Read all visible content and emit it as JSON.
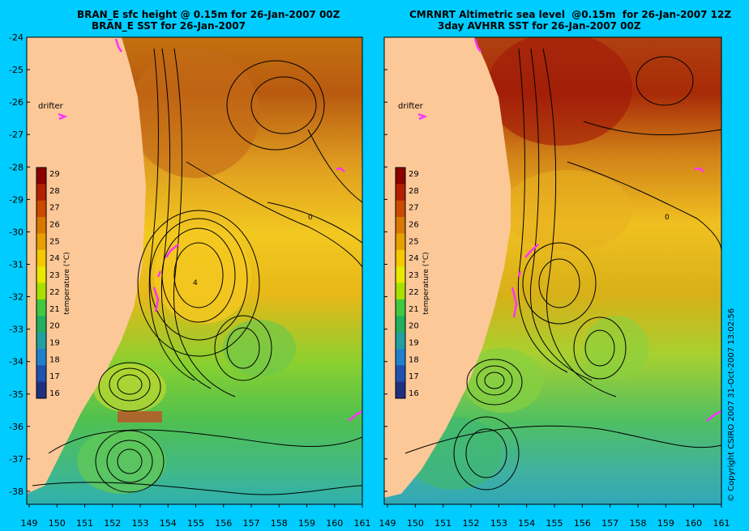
{
  "panels": [
    {
      "title_line1": "BRAN_E sfc height @ 0.15m for 26-Jan-2007 00Z",
      "title_line2": "BRAN_E SST for 26-Jan-2007",
      "drifter_label": "drifter",
      "contour_labels": [
        "0",
        "4"
      ]
    },
    {
      "title_line1": "CMRNRT Altimetric sea level  @0.15m  for 26-Jan-2007 12Z",
      "title_line2": "3day AVHRR SST for 26-Jan-2007 00Z",
      "drifter_label": "drifter",
      "contour_labels": [
        "0"
      ]
    }
  ],
  "axes": {
    "lat_ticks": [
      "-24",
      "-25",
      "-26",
      "-27",
      "-28",
      "-29",
      "-30",
      "-31",
      "-32",
      "-33",
      "-34",
      "-35",
      "-36",
      "-37",
      "-38"
    ],
    "lon_ticks": [
      "149",
      "150",
      "151",
      "152",
      "153",
      "154",
      "155",
      "156",
      "157",
      "158",
      "159",
      "160",
      "161"
    ],
    "lat_range": [
      -38.4,
      -24
    ],
    "lon_range": [
      149,
      161
    ]
  },
  "colorbar": {
    "label": "temperature (°C)",
    "ticks": [
      "29",
      "28",
      "27",
      "26",
      "25",
      "24",
      "23",
      "22",
      "21",
      "20",
      "19",
      "18",
      "17",
      "16"
    ],
    "colors": [
      "#8b0000",
      "#b22000",
      "#cc4a00",
      "#d97800",
      "#e8a000",
      "#f5c800",
      "#e8e800",
      "#a8e000",
      "#40c840",
      "#20b060",
      "#20a0a0",
      "#2080d0",
      "#2050b0",
      "#203080"
    ]
  },
  "copyright": "© Copyright CSIRO 2007   31-Oct-2007 13:02:56",
  "colors": {
    "background": "#00ccff",
    "land": "#fcc898",
    "drifter": "#ff33ff"
  }
}
